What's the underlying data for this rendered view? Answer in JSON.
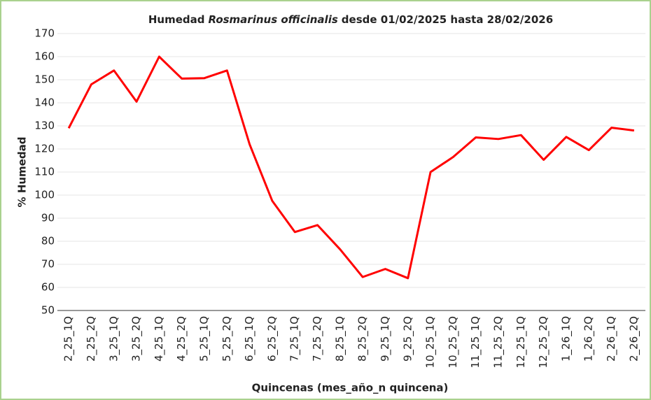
{
  "chart_data": {
    "type": "line",
    "title": {
      "prefix": "Humedad",
      "species": "Rosmarinus officinalis",
      "suffix": "desde 01/02/2025 hasta 28/02/2026"
    },
    "x_label": "Quincenas (mes_año_n quincena)",
    "y_label": "% Humedad",
    "categories": [
      "2_25_1Q",
      "2_25_2Q",
      "3_25_1Q",
      "3_25_2Q",
      "4_25_1Q",
      "4_25_2Q",
      "5_25_1Q",
      "5_25_2Q",
      "6_25_1Q",
      "6_25_2Q",
      "7_25_1Q",
      "7_25_2Q",
      "8_25_1Q",
      "8_25_2Q",
      "9_25_1Q",
      "9_25_2Q",
      "10_25_1Q",
      "10_25_2Q",
      "11_25_1Q",
      "11_25_2Q",
      "12_25_1Q",
      "12_25_2Q",
      "1_26_1Q",
      "1_26_2Q",
      "2_26_1Q",
      "2_26_2Q"
    ],
    "series": [
      {
        "name": "% Humedad",
        "color": "#ff0000",
        "values": [
          129,
          148,
          154,
          140.5,
          160,
          150.5,
          150.7,
          154,
          122,
          97.5,
          84,
          87,
          76.5,
          64.5,
          68,
          64,
          110,
          116.5,
          125,
          124.3,
          126,
          115.3,
          125.2,
          119.5,
          129.2,
          128
        ]
      }
    ],
    "ylim": [
      50,
      170
    ],
    "yticks": [
      50,
      60,
      70,
      80,
      90,
      100,
      110,
      120,
      130,
      140,
      150,
      160,
      170
    ],
    "grid": true
  }
}
